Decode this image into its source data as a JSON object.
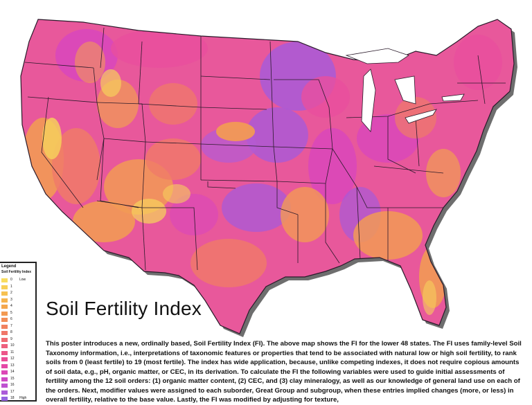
{
  "title": "Soil Fertility Index",
  "legend": {
    "heading": "Legend",
    "subheading": "Soil Fertility Index",
    "low_label": "Low",
    "high_label": "High",
    "classes": [
      {
        "value": "0",
        "color": "#f8dc60"
      },
      {
        "value": "1",
        "color": "#f7cf58"
      },
      {
        "value": "2",
        "color": "#f6c152"
      },
      {
        "value": "3",
        "color": "#f5b44e"
      },
      {
        "value": "4",
        "color": "#f4a74e"
      },
      {
        "value": "5",
        "color": "#f39a52"
      },
      {
        "value": "6",
        "color": "#f28e58"
      },
      {
        "value": "7",
        "color": "#f1825f"
      },
      {
        "value": "8",
        "color": "#f07668"
      },
      {
        "value": "9",
        "color": "#ef6b72"
      },
      {
        "value": "10",
        "color": "#ee607d"
      },
      {
        "value": "11",
        "color": "#ec5689"
      },
      {
        "value": "12",
        "color": "#ea4e97"
      },
      {
        "value": "13",
        "color": "#e548a6"
      },
      {
        "value": "14",
        "color": "#dc47b6"
      },
      {
        "value": "15",
        "color": "#cf4ac4"
      },
      {
        "value": "16",
        "color": "#bf52d0"
      },
      {
        "value": "17",
        "color": "#ab5bd9"
      },
      {
        "value": "18",
        "color": "#9565e0"
      }
    ]
  },
  "description": "This poster introduces a new, ordinally based, Soil Fertility Index (FI). The above map shows the FI for the lower 48 states. The FI uses family-level Soil Taxonomy information, i.e., interpretations of taxonomic features or properties that tend to be associated with natural low or high soil fertility, to rank soils from 0 (least fertile) to 19 (most fertile). The index has wide application, because, unlike competing indexes, it does not require copious amounts of soil data, e.g., pH, organic matter, or CEC, in its derivation. To calculate the FI the following variables were used to guide initial assessments of fertility among the 12 soil orders: (1) organic matter content, (2) CEC, and (3) clay mineralogy, as well as our knowledge of general land use on each of the orders. Next, modifier values were assigned to each suborder, Great Group and subgroup, when these entries implied changes (more, or less) in overall fertility, relative to the base value. Lastly, the FI was modified by adjusting for texture,",
  "map_colors": {
    "base": "#e8589b",
    "pink": "#e94f9d",
    "magenta": "#d846bd",
    "purple": "#a85ad8",
    "orange": "#f29a55",
    "yellow": "#f6cf5c",
    "salmon": "#f07a68",
    "border": "#2a1a2a",
    "shadow": "#555555"
  }
}
